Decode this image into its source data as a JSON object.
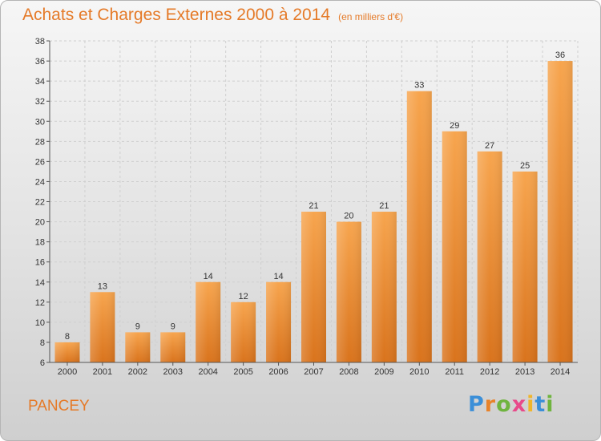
{
  "title": "Achats et Charges Externes 2000 à 2014",
  "unit": "(en milliers d'€)",
  "location": "PANCEY",
  "logo": {
    "letters": [
      "P",
      "r",
      "o",
      "x",
      "i",
      "t",
      "i"
    ],
    "colors": [
      "#3b8fd8",
      "#e8832a",
      "#6fb43f",
      "#e84a8a",
      "#f0b52b",
      "#3b8fd8",
      "#6fb43f"
    ]
  },
  "chart_data": {
    "type": "bar",
    "categories": [
      "2000",
      "2001",
      "2002",
      "2003",
      "2004",
      "2005",
      "2006",
      "2007",
      "2008",
      "2009",
      "2010",
      "2011",
      "2012",
      "2013",
      "2014"
    ],
    "values": [
      8,
      13,
      9,
      9,
      14,
      12,
      14,
      21,
      20,
      21,
      33,
      29,
      27,
      25,
      36
    ],
    "ylim": [
      6,
      38
    ],
    "yticks": [
      6,
      8,
      10,
      12,
      14,
      16,
      18,
      20,
      22,
      24,
      26,
      28,
      30,
      32,
      34,
      36,
      38
    ],
    "grid": true,
    "bar_color": "#f0953e",
    "title": "Achats et Charges Externes 2000 à 2014",
    "xlabel": "",
    "ylabel": "(en milliers d'€)"
  }
}
